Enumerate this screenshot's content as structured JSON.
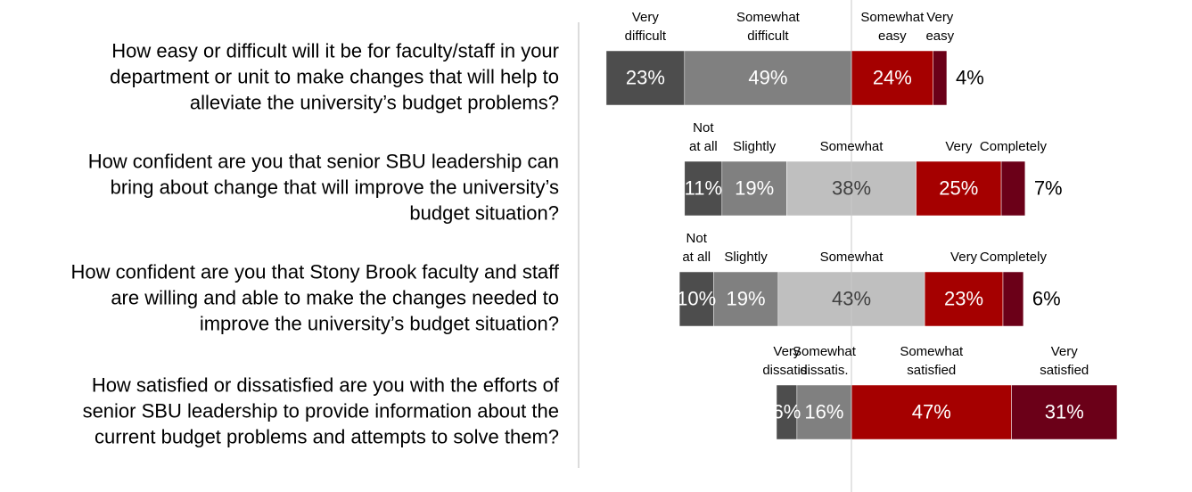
{
  "chart_data": {
    "type": "diverging-bar",
    "rows": [
      {
        "question": [
          "How easy or difficult will it be for faculty/staff in your",
          "department or unit to make changes that will help to",
          "alleviate the university’s budget problems?"
        ],
        "categories": [
          [
            "Very",
            "difficult"
          ],
          [
            "Somewhat",
            "difficult"
          ],
          [
            "Somewhat",
            "easy"
          ],
          [
            "Very",
            "easy"
          ]
        ],
        "values": [
          23,
          49,
          24,
          4
        ],
        "value_labels": [
          "23%",
          "49%",
          "24%",
          "4%"
        ],
        "colors": [
          "#4d4d4d",
          "#808080",
          "#a50000",
          "#6b0018"
        ],
        "neutral": null
      },
      {
        "question": [
          "How confident are you that senior SBU leadership can",
          "bring about change that will improve the university’s",
          "budget situation?"
        ],
        "categories": [
          [
            "Not",
            "at all"
          ],
          [
            "Slightly"
          ],
          [
            "Somewhat"
          ],
          [
            "Very"
          ],
          [
            "Completely"
          ]
        ],
        "values": [
          11,
          19,
          38,
          25,
          7
        ],
        "value_labels": [
          "11%",
          "19%",
          "38%",
          "25%",
          "7%"
        ],
        "colors": [
          "#4d4d4d",
          "#808080",
          "#bfbfbf",
          "#a50000",
          "#6b0018"
        ],
        "neutral": 2
      },
      {
        "question": [
          "How confident are you that Stony Brook faculty and staff",
          "are willing and able to make the changes needed to",
          "improve the university’s budget situation?"
        ],
        "categories": [
          [
            "Not",
            "at all"
          ],
          [
            "Slightly"
          ],
          [
            "Somewhat"
          ],
          [
            "Very"
          ],
          [
            "Completely"
          ]
        ],
        "values": [
          10,
          19,
          43,
          23,
          6
        ],
        "value_labels": [
          "10%",
          "19%",
          "43%",
          "23%",
          "6%"
        ],
        "colors": [
          "#4d4d4d",
          "#808080",
          "#bfbfbf",
          "#a50000",
          "#6b0018"
        ],
        "neutral": 2
      },
      {
        "question": [
          "How satisfied or dissatisfied are you with the efforts of",
          "senior SBU leadership to provide information about the",
          "current budget problems and attempts to solve them?"
        ],
        "categories": [
          [
            "Very",
            "dissatis."
          ],
          [
            "Somewhat",
            "dissatis."
          ],
          [
            "Somewhat",
            "satisfied"
          ],
          [
            "Very",
            "satisfied"
          ]
        ],
        "values": [
          6,
          16,
          47,
          31
        ],
        "value_labels": [
          "6%",
          "16%",
          "47%",
          "31%"
        ],
        "colors": [
          "#4d4d4d",
          "#808080",
          "#a50000",
          "#6b0018"
        ],
        "neutral": null
      }
    ]
  }
}
